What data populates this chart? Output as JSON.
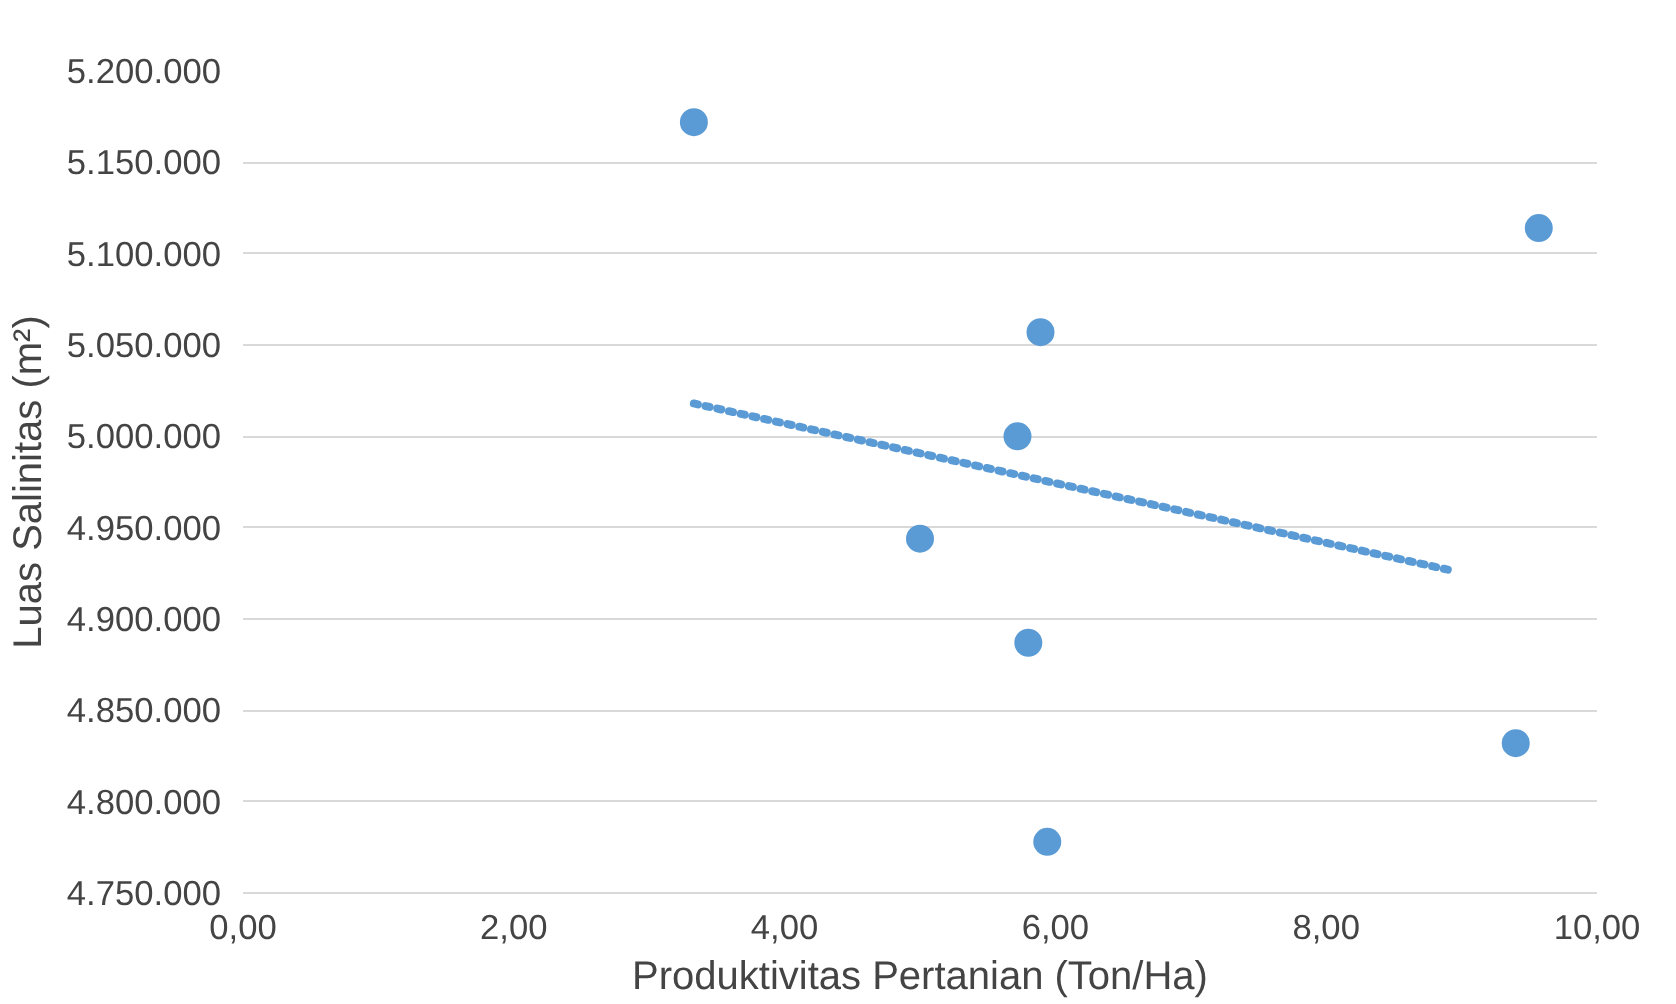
{
  "chart_data": {
    "type": "scatter",
    "xlabel": "Produktivitas Pertanian (Ton/Ha)",
    "ylabel": "Luas Salinitas (m²)",
    "xlim": [
      0,
      10
    ],
    "ylim": [
      4750000,
      5200000
    ],
    "xticks": [
      {
        "value": 0,
        "label": "0,00"
      },
      {
        "value": 2,
        "label": "2,00"
      },
      {
        "value": 4,
        "label": "4,00"
      },
      {
        "value": 6,
        "label": "6,00"
      },
      {
        "value": 8,
        "label": "8,00"
      },
      {
        "value": 10,
        "label": "10,00"
      }
    ],
    "yticks": [
      {
        "value": 4750000,
        "label": "4.750.000"
      },
      {
        "value": 4800000,
        "label": "4.800.000"
      },
      {
        "value": 4850000,
        "label": "4.850.000"
      },
      {
        "value": 4900000,
        "label": "4.900.000"
      },
      {
        "value": 4950000,
        "label": "4.950.000"
      },
      {
        "value": 5000000,
        "label": "5.000.000"
      },
      {
        "value": 5050000,
        "label": "5.050.000"
      },
      {
        "value": 5100000,
        "label": "5.100.000"
      },
      {
        "value": 5150000,
        "label": "5.150.000"
      },
      {
        "value": 5200000,
        "label": "5.200.000"
      }
    ],
    "grid": "y",
    "series": [
      {
        "marker": "circle",
        "color": "#5b9bd5",
        "x": [
          3.33,
          9.57,
          5.89,
          5.72,
          5.0,
          5.8,
          9.4,
          5.94
        ],
        "values": [
          5172000,
          5114000,
          5057000,
          5000000,
          4944000,
          4887000,
          4832000,
          4778000
        ]
      },
      {
        "type": "line",
        "marker": "none",
        "color": "#5b9bd5",
        "line_style": "dotted",
        "x": [
          3.33,
          8.9
        ],
        "values": [
          5018000,
          4927000
        ]
      }
    ]
  }
}
